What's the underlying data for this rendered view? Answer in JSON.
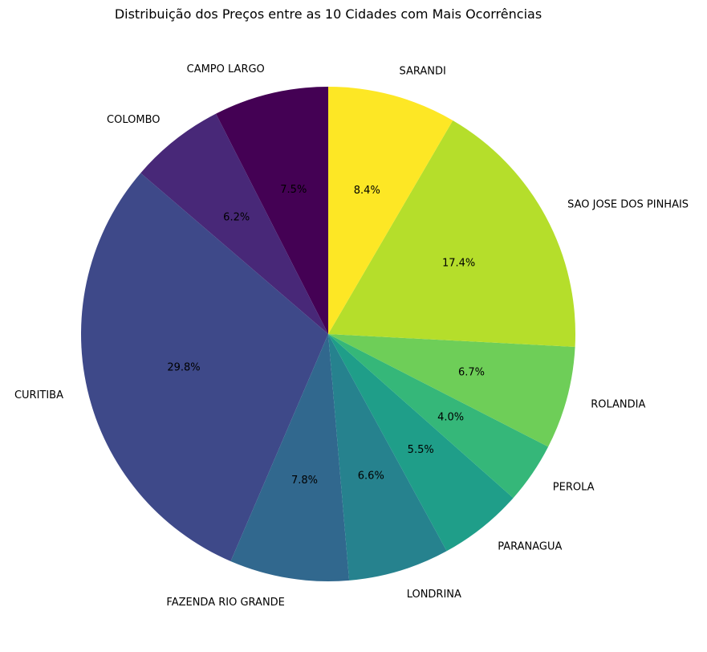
{
  "chart_data": {
    "type": "pie",
    "title": "Distribuição dos Preços entre as 10 Cidades com Mais Ocorrências",
    "start_angle_deg": 90,
    "direction": "counterclockwise",
    "slices": [
      {
        "label": "CAMPO LARGO",
        "value": 7.5,
        "pct_label": "7.5%",
        "color": "#440154"
      },
      {
        "label": "COLOMBO",
        "value": 6.2,
        "pct_label": "6.2%",
        "color": "#482878"
      },
      {
        "label": "CURITIBA",
        "value": 29.8,
        "pct_label": "29.8%",
        "color": "#3e4989"
      },
      {
        "label": "FAZENDA RIO GRANDE",
        "value": 7.8,
        "pct_label": "7.8%",
        "color": "#31688e"
      },
      {
        "label": "LONDRINA",
        "value": 6.6,
        "pct_label": "6.6%",
        "color": "#26828e"
      },
      {
        "label": "PARANAGUA",
        "value": 5.5,
        "pct_label": "5.5%",
        "color": "#1f9e89"
      },
      {
        "label": "PEROLA",
        "value": 4.0,
        "pct_label": "4.0%",
        "color": "#35b779"
      },
      {
        "label": "ROLANDIA",
        "value": 6.7,
        "pct_label": "6.7%",
        "color": "#6ece58"
      },
      {
        "label": "SAO JOSE DOS PINHAIS",
        "value": 17.4,
        "pct_label": "17.4%",
        "color": "#b5de2b"
      },
      {
        "label": "SARANDI",
        "value": 8.4,
        "pct_label": "8.4%",
        "color": "#fde725"
      }
    ]
  }
}
